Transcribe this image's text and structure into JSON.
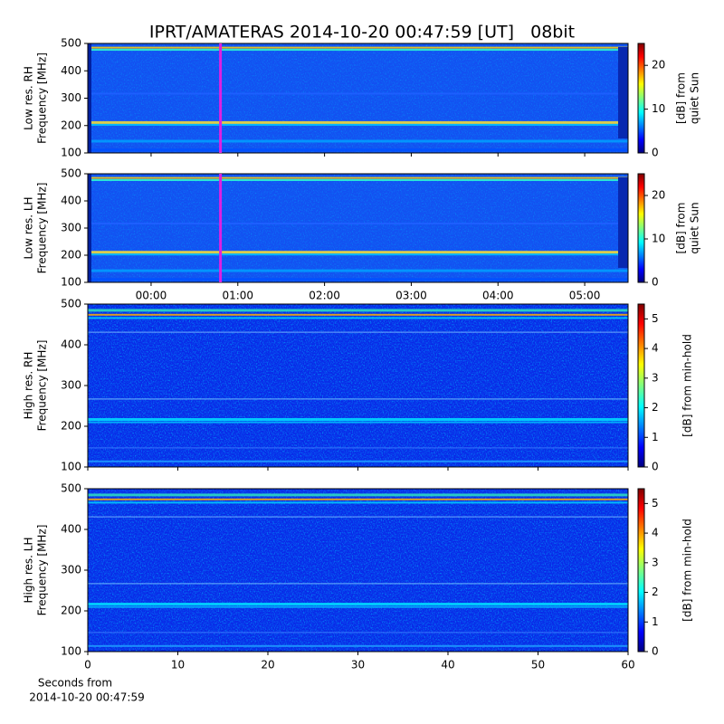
{
  "chart_data": [
    {
      "type": "heatmap",
      "title": "IPRT/AMATERAS 2014-10-20 00:47:59 [UT]   08bit",
      "ylabel": [
        "Low res. RH",
        "Frequency [MHz]"
      ],
      "ylim": [
        100,
        500
      ],
      "yticks": [
        100,
        200,
        300,
        400,
        500
      ],
      "marker_x": 0.8,
      "marker_color": "#e020e0",
      "colorbar": {
        "label": [
          "[dB] from",
          "quiet Sun"
        ],
        "lim": [
          0,
          25
        ],
        "ticks": [
          0,
          10,
          20
        ],
        "colormap": "jet"
      }
    },
    {
      "type": "heatmap",
      "ylabel": [
        "Low res. LH",
        "Frequency [MHz]"
      ],
      "ylim": [
        100,
        500
      ],
      "yticks": [
        100,
        200,
        300,
        400,
        500
      ],
      "xlim": [
        -0.73,
        5.5
      ],
      "xticks": [
        {
          "value": 0,
          "label": "00:00"
        },
        {
          "value": 1,
          "label": "01:00"
        },
        {
          "value": 2,
          "label": "02:00"
        },
        {
          "value": 3,
          "label": "03:00"
        },
        {
          "value": 4,
          "label": "04:00"
        },
        {
          "value": 5,
          "label": "05:00"
        }
      ],
      "marker_x": 0.8,
      "marker_color": "#e020e0",
      "colorbar": {
        "label": [
          "[dB] from",
          "quiet Sun"
        ],
        "lim": [
          0,
          25
        ],
        "ticks": [
          0,
          10,
          20
        ],
        "colormap": "jet"
      }
    },
    {
      "type": "heatmap",
      "ylabel": [
        "High res. RH",
        "Frequency [MHz]"
      ],
      "ylim": [
        100,
        500
      ],
      "yticks": [
        100,
        200,
        300,
        400,
        500
      ],
      "colorbar": {
        "label": [
          "[dB] from min-hold"
        ],
        "lim": [
          0,
          5.5
        ],
        "ticks": [
          0,
          1,
          2,
          3,
          4,
          5
        ],
        "colormap": "jet"
      }
    },
    {
      "type": "heatmap",
      "ylabel": [
        "High res. LH",
        "Frequency [MHz]"
      ],
      "ylim": [
        100,
        500
      ],
      "yticks": [
        100,
        200,
        300,
        400,
        500
      ],
      "xlim": [
        0,
        60
      ],
      "xticks": [
        0,
        10,
        20,
        30,
        40,
        50,
        60
      ],
      "xlabel": [
        "Seconds from",
        "2014-10-20 00:47:59"
      ],
      "colorbar": {
        "label": [
          "[dB] from min-hold"
        ],
        "lim": [
          0,
          5.5
        ],
        "ticks": [
          0,
          1,
          2,
          3,
          4,
          5
        ],
        "colormap": "jet"
      }
    }
  ]
}
